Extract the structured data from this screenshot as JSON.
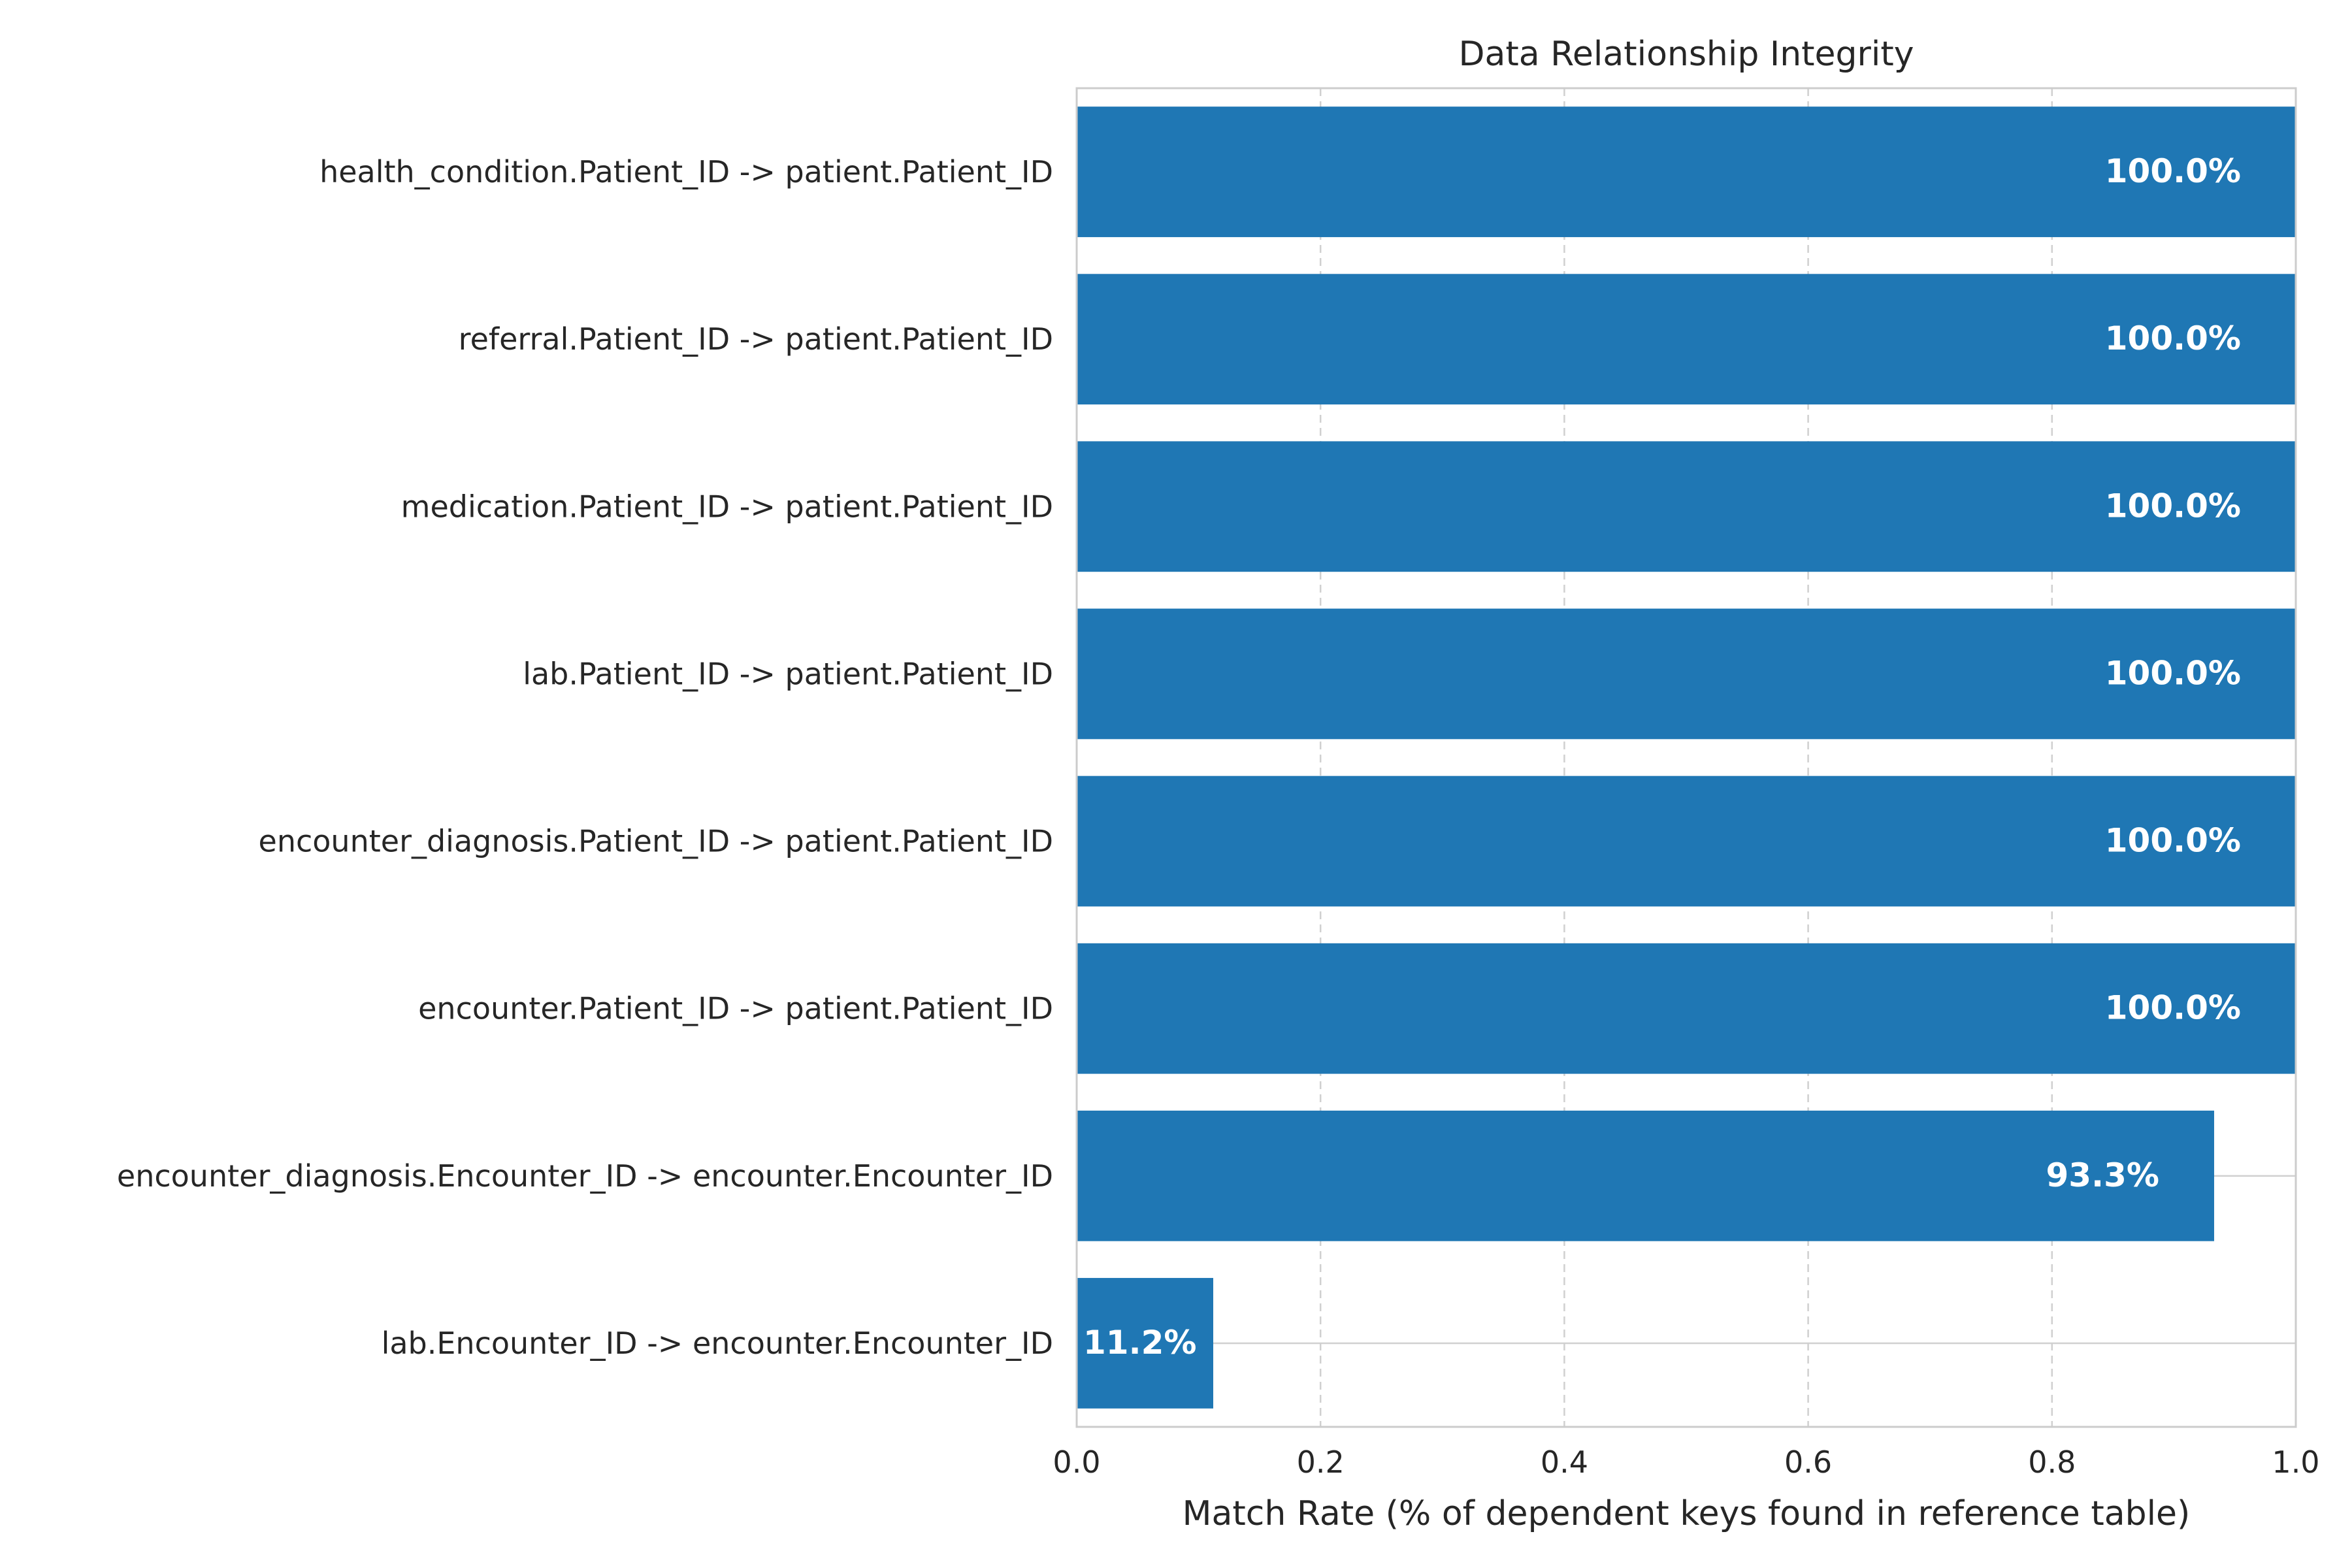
{
  "chart_data": {
    "type": "bar",
    "orientation": "horizontal",
    "title": "Data Relationship Integrity",
    "xlabel": "Match Rate (% of dependent keys found in reference table)",
    "ylabel": "",
    "xlim": [
      0,
      1.0
    ],
    "xticks": [
      "0.0",
      "0.2",
      "0.4",
      "0.6",
      "0.8",
      "1.0"
    ],
    "grid": true,
    "bar_color": "#1f77b4",
    "categories": [
      "health_condition.Patient_ID -> patient.Patient_ID",
      "referral.Patient_ID -> patient.Patient_ID",
      "medication.Patient_ID -> patient.Patient_ID",
      "lab.Patient_ID -> patient.Patient_ID",
      "encounter_diagnosis.Patient_ID -> patient.Patient_ID",
      "encounter.Patient_ID -> patient.Patient_ID",
      "encounter_diagnosis.Encounter_ID -> encounter.Encounter_ID",
      "lab.Encounter_ID -> encounter.Encounter_ID"
    ],
    "values": [
      1.0,
      1.0,
      1.0,
      1.0,
      1.0,
      1.0,
      0.933,
      0.112
    ],
    "data_labels": [
      "100.0%",
      "100.0%",
      "100.0%",
      "100.0%",
      "100.0%",
      "100.0%",
      "93.3%",
      "11.2%"
    ]
  }
}
